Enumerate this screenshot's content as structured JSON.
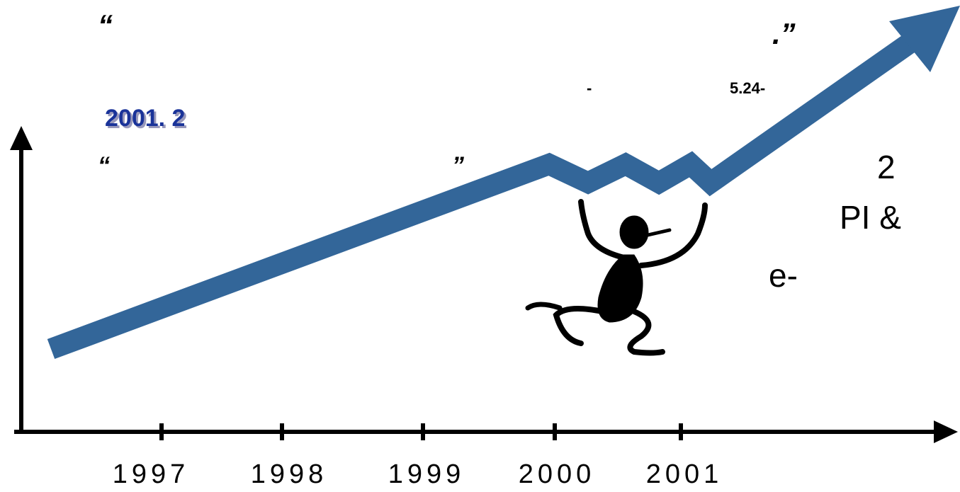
{
  "quote_top_open": "“",
  "quote_top_close": ".”",
  "dash": "-",
  "date_note": "5.24-",
  "headline": "2001. 2",
  "quote_open": "“",
  "quote_close": "”",
  "side_number": "2",
  "side_text": "PI &",
  "side_small": "e-",
  "axis": {
    "labels": [
      "1997",
      "1998",
      "1999",
      "2000",
      "2001"
    ]
  }
}
